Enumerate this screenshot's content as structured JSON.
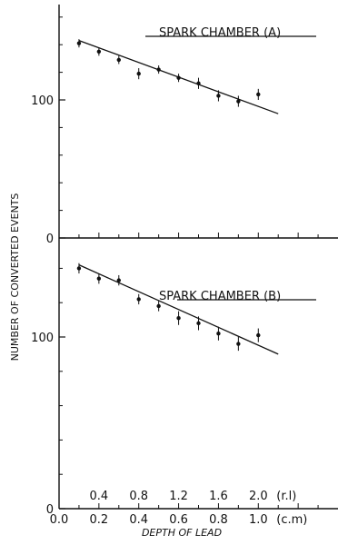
{
  "chart_data": [
    {
      "type": "scatter",
      "title": "SPARK CHAMBER (A)",
      "xlabel": "DEPTH OF LEAD",
      "ylabel": "NUMBER OF CONVERTED EVENTS",
      "xlim": [
        0.0,
        1.4
      ],
      "ylim": [
        0,
        160
      ],
      "yticks": [
        {
          "value": 0,
          "label": "0"
        },
        {
          "value": 100,
          "label": "100"
        }
      ],
      "series": [
        {
          "x": [
            0.1,
            0.2,
            0.3,
            0.4,
            0.5,
            0.6,
            0.7,
            0.8,
            0.9,
            1.0
          ],
          "y": [
            141,
            135,
            129,
            119,
            122,
            116,
            112,
            103,
            99,
            104
          ],
          "err": [
            3,
            3,
            3,
            4,
            3,
            3,
            4,
            4,
            4,
            4
          ]
        }
      ],
      "fit_line": {
        "x": [
          0.1,
          1.1
        ],
        "y": [
          143,
          90
        ]
      }
    },
    {
      "type": "scatter",
      "title": "SPARK CHAMBER (B)",
      "xlabel": "DEPTH OF LEAD",
      "ylabel": "NUMBER OF CONVERTED EVENTS",
      "xlim": [
        0.0,
        1.4
      ],
      "ylim": [
        0,
        160
      ],
      "yticks": [
        {
          "value": 0,
          "label": "0"
        },
        {
          "value": 100,
          "label": "100"
        }
      ],
      "x_ticks_cm": [
        {
          "value": 0.0,
          "label": "0.0"
        },
        {
          "value": 0.2,
          "label": "0.2"
        },
        {
          "value": 0.4,
          "label": "0.4"
        },
        {
          "value": 0.6,
          "label": "0.6"
        },
        {
          "value": 0.8,
          "label": "0.8"
        },
        {
          "value": 1.0,
          "label": "1.0"
        }
      ],
      "x_unit_cm": "(c.m)",
      "x_ticks_rl": [
        {
          "value": 0.4,
          "label": "0.4"
        },
        {
          "value": 0.8,
          "label": "0.8"
        },
        {
          "value": 1.2,
          "label": "1.2"
        },
        {
          "value": 1.6,
          "label": "1.6"
        },
        {
          "value": 2.0,
          "label": "2.0"
        }
      ],
      "x_unit_rl": "(r.l)",
      "series": [
        {
          "x": [
            0.1,
            0.2,
            0.3,
            0.4,
            0.5,
            0.6,
            0.7,
            0.8,
            0.9,
            1.0
          ],
          "y": [
            140,
            134,
            133,
            122,
            118,
            111,
            108,
            102,
            96,
            101
          ],
          "err": [
            3,
            3,
            3,
            3,
            3,
            4,
            4,
            4,
            4,
            4
          ]
        }
      ],
      "fit_line": {
        "x": [
          0.1,
          1.1
        ],
        "y": [
          142,
          90
        ]
      }
    }
  ]
}
